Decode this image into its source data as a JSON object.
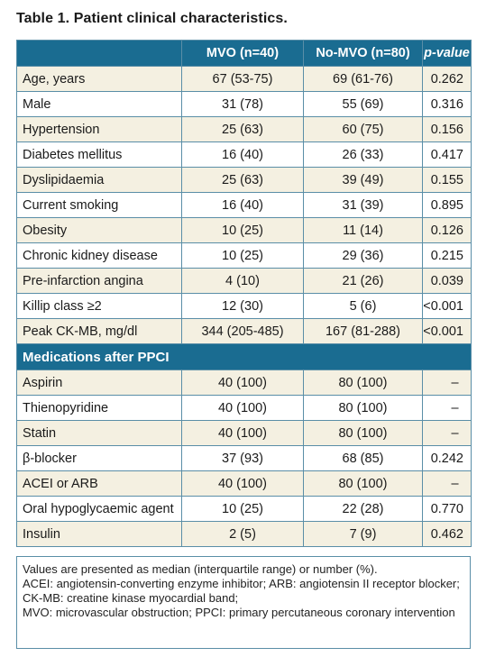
{
  "title": "Table 1. Patient clinical characteristics.",
  "headers": [
    "",
    "MVO (n=40)",
    "No-MVO (n=80)",
    "p-value"
  ],
  "rows_main": [
    [
      "Age, years",
      "67 (53-75)",
      "69 (61-76)",
      "0.262"
    ],
    [
      "Male",
      "31 (78)",
      "55 (69)",
      "0.316"
    ],
    [
      "Hypertension",
      "25 (63)",
      "60 (75)",
      "0.156"
    ],
    [
      "Diabetes mellitus",
      "16 (40)",
      "26 (33)",
      "0.417"
    ],
    [
      "Dyslipidaemia",
      "25 (63)",
      "39 (49)",
      "0.155"
    ],
    [
      "Current smoking",
      "16 (40)",
      "31 (39)",
      "0.895"
    ],
    [
      "Obesity",
      "10 (25)",
      "11 (14)",
      "0.126"
    ],
    [
      "Chronic kidney disease",
      "10 (25)",
      "29 (36)",
      "0.215"
    ],
    [
      "Pre-infarction angina",
      "4 (10)",
      "21 (26)",
      "0.039"
    ],
    [
      "Killip class ≥2",
      "12 (30)",
      "5 (6)",
      "<0.001"
    ],
    [
      "Peak CK-MB, mg/dl",
      "344 (205-485)",
      "167 (81-288)",
      "<0.001"
    ]
  ],
  "section_label": "Medications after PPCI",
  "rows_meds": [
    [
      "Aspirin",
      "40 (100)",
      "80 (100)",
      "–"
    ],
    [
      "Thienopyridine",
      "40 (100)",
      "80 (100)",
      "–"
    ],
    [
      "Statin",
      "40 (100)",
      "80 (100)",
      "–"
    ],
    [
      "β-blocker",
      "37 (93)",
      "68 (85)",
      "0.242"
    ],
    [
      "ACEI or ARB",
      "40 (100)",
      "80 (100)",
      "–"
    ],
    [
      "Oral hypoglycaemic agent",
      "10 (25)",
      "22 (28)",
      "0.770"
    ],
    [
      "Insulin",
      "2 (5)",
      "7 (9)",
      "0.462"
    ]
  ],
  "footnote": [
    "Values are presented as median (interquartile range) or number (%).",
    "ACEI: angiotensin-converting enzyme inhibitor; ARB: angiotensin II receptor blocker; CK-MB: creatine kinase myocardial band;",
    "MVO: microvascular obstruction; PPCI: primary percutaneous coronary intervention"
  ]
}
